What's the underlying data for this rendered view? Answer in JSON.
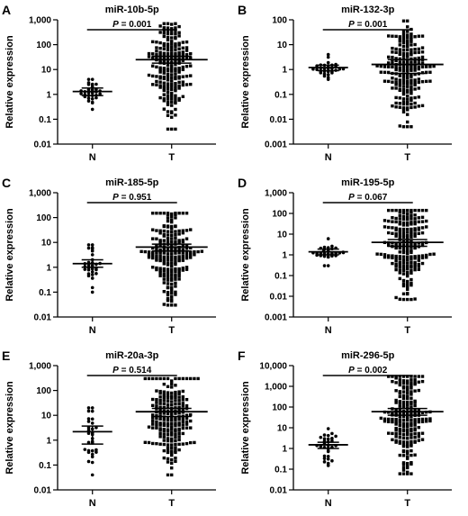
{
  "chart_data": [
    {
      "type": "scatter",
      "panel_label": "A",
      "title": "miR-10b-5p",
      "p_label": "P",
      "p_value": "= 0.001",
      "ylabel": "Relative expression",
      "yscale": "log",
      "ylim": [
        0.01,
        1000
      ],
      "yticks": [
        "0.01",
        "0.1",
        "1",
        "10",
        "100",
        "1,000"
      ],
      "categories": [
        "N",
        "T"
      ],
      "groups": [
        {
          "name": "N",
          "marker": "circle",
          "n": 30,
          "mean": 1.3,
          "err_low": 0.9,
          "err_high": 1.8,
          "min": 0.25,
          "max": 4
        },
        {
          "name": "T",
          "marker": "square",
          "n": 200,
          "mean": 25,
          "err_low": 18,
          "err_high": 34,
          "min": 0.04,
          "max": 700
        }
      ]
    },
    {
      "type": "scatter",
      "panel_label": "B",
      "title": "miR-132-3p",
      "p_label": "P",
      "p_value": "= 0.001",
      "ylabel": "Relative expression",
      "yscale": "log",
      "ylim": [
        0.001,
        100
      ],
      "yticks": [
        "0.001",
        "0.01",
        "0.1",
        "1",
        "10",
        "100"
      ],
      "categories": [
        "N",
        "T"
      ],
      "groups": [
        {
          "name": "N",
          "marker": "circle",
          "n": 30,
          "mean": 1.2,
          "err_low": 0.9,
          "err_high": 1.5,
          "min": 0.4,
          "max": 4
        },
        {
          "name": "T",
          "marker": "square",
          "n": 200,
          "mean": 1.6,
          "err_low": 0.7,
          "err_high": 2.5,
          "min": 0.005,
          "max": 90
        }
      ]
    },
    {
      "type": "scatter",
      "panel_label": "C",
      "title": "miR-185-5p",
      "p_label": "P",
      "p_value": "= 0.951",
      "ylabel": "Relative expression",
      "yscale": "log",
      "ylim": [
        0.01,
        1000
      ],
      "yticks": [
        "0.01",
        "0.1",
        "1",
        "10",
        "100",
        "1,000"
      ],
      "categories": [
        "N",
        "T"
      ],
      "groups": [
        {
          "name": "N",
          "marker": "circle",
          "n": 30,
          "mean": 1.4,
          "err_low": 1.0,
          "err_high": 2.0,
          "min": 0.1,
          "max": 8
        },
        {
          "name": "T",
          "marker": "square",
          "n": 200,
          "mean": 6.5,
          "err_low": 4.5,
          "err_high": 8.5,
          "min": 0.03,
          "max": 150
        }
      ]
    },
    {
      "type": "scatter",
      "panel_label": "D",
      "title": "miR-195-5p",
      "p_label": "P",
      "p_value": "= 0.067",
      "ylabel": "Relative expression",
      "yscale": "log",
      "ylim": [
        0.001,
        1000
      ],
      "yticks": [
        "0.001",
        "0.01",
        "0.1",
        "1",
        "10",
        "100",
        "1,000"
      ],
      "categories": [
        "N",
        "T"
      ],
      "groups": [
        {
          "name": "N",
          "marker": "circle",
          "n": 30,
          "mean": 1.4,
          "err_low": 1.0,
          "err_high": 1.9,
          "min": 0.3,
          "max": 6
        },
        {
          "name": "T",
          "marker": "square",
          "n": 200,
          "mean": 4.0,
          "err_low": 2.6,
          "err_high": 5.5,
          "min": 0.007,
          "max": 140
        }
      ]
    },
    {
      "type": "scatter",
      "panel_label": "E",
      "title": "miR-20a-3p",
      "p_label": "P",
      "p_value": "= 0.514",
      "ylabel": "Relative expression",
      "yscale": "log",
      "ylim": [
        0.01,
        1000
      ],
      "yticks": [
        "0.01",
        "0.1",
        "1",
        "10",
        "100",
        "1,000"
      ],
      "categories": [
        "N",
        "T"
      ],
      "groups": [
        {
          "name": "N",
          "marker": "circle",
          "n": 30,
          "mean": 2.2,
          "err_low": 0.7,
          "err_high": 3.7,
          "min": 0.04,
          "max": 20
        },
        {
          "name": "T",
          "marker": "square",
          "n": 200,
          "mean": 14,
          "err_low": 9,
          "err_high": 19,
          "min": 0.04,
          "max": 300
        }
      ]
    },
    {
      "type": "scatter",
      "panel_label": "F",
      "title": "miR-296-5p",
      "p_label": "P",
      "p_value": "= 0.002",
      "ylabel": "Relative expression",
      "yscale": "log",
      "ylim": [
        0.01,
        10000
      ],
      "yticks": [
        "0.01",
        "0.1",
        "1",
        "10",
        "100",
        "1,000",
        "10,000"
      ],
      "categories": [
        "N",
        "T"
      ],
      "groups": [
        {
          "name": "N",
          "marker": "circle",
          "n": 30,
          "mean": 1.5,
          "err_low": 1.0,
          "err_high": 2.0,
          "min": 0.15,
          "max": 9
        },
        {
          "name": "T",
          "marker": "square",
          "n": 200,
          "mean": 60,
          "err_low": 40,
          "err_high": 85,
          "min": 0.06,
          "max": 3000
        }
      ]
    }
  ]
}
